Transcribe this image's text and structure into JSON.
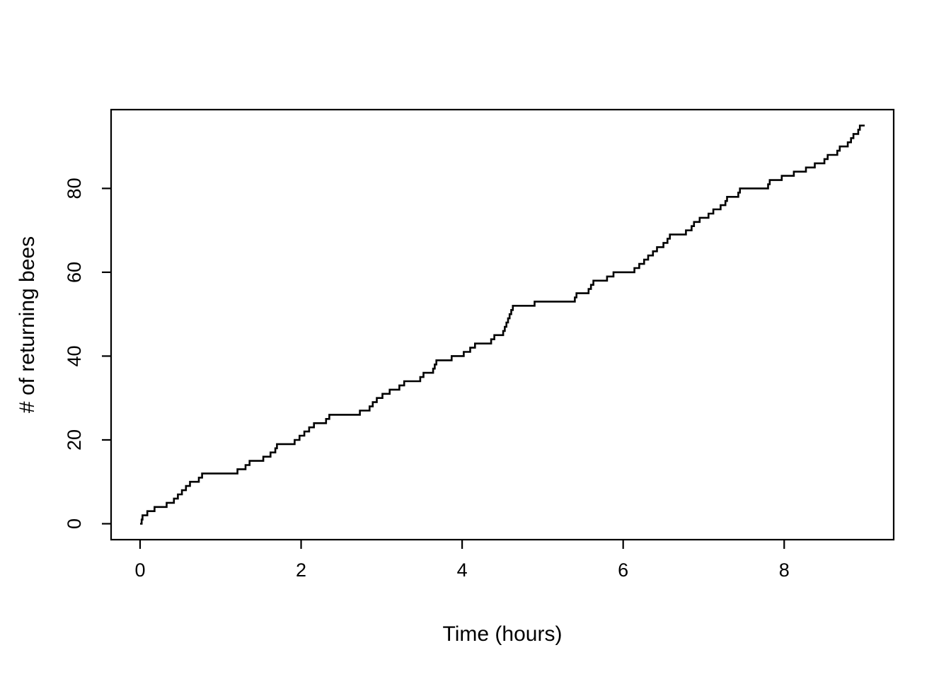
{
  "chart_data": {
    "type": "line",
    "subtype": "step-cumulative",
    "title": "",
    "xlabel": "Time (hours)",
    "ylabel": "# of returning bees",
    "x_ticks": [
      0,
      2,
      4,
      6,
      8
    ],
    "y_ticks": [
      0,
      20,
      40,
      60,
      80
    ],
    "xlim": [
      -0.36,
      9.36
    ],
    "ylim": [
      -3.8,
      98.8
    ],
    "grid": false,
    "legend": null,
    "line_color": "#000000",
    "background": "#ffffff",
    "total_events": 95,
    "x_end": 9.0,
    "event_times_hours": [
      0.02,
      0.03,
      0.09,
      0.18,
      0.33,
      0.42,
      0.47,
      0.52,
      0.57,
      0.62,
      0.73,
      0.77,
      1.21,
      1.31,
      1.36,
      1.53,
      1.62,
      1.68,
      1.7,
      1.92,
      1.98,
      2.04,
      2.1,
      2.16,
      2.31,
      2.35,
      2.73,
      2.85,
      2.89,
      2.94,
      3.01,
      3.1,
      3.22,
      3.28,
      3.48,
      3.52,
      3.64,
      3.66,
      3.68,
      3.87,
      4.02,
      4.1,
      4.16,
      4.36,
      4.4,
      4.51,
      4.53,
      4.55,
      4.57,
      4.59,
      4.61,
      4.63,
      4.9,
      5.4,
      5.42,
      5.57,
      5.6,
      5.63,
      5.8,
      5.88,
      6.14,
      6.2,
      6.26,
      6.31,
      6.37,
      6.42,
      6.5,
      6.55,
      6.58,
      6.78,
      6.85,
      6.88,
      6.95,
      7.06,
      7.12,
      7.21,
      7.27,
      7.29,
      7.43,
      7.45,
      7.8,
      7.82,
      7.97,
      8.12,
      8.27,
      8.38,
      8.5,
      8.54,
      8.66,
      8.69,
      8.79,
      8.83,
      8.86,
      8.92,
      8.94
    ]
  }
}
